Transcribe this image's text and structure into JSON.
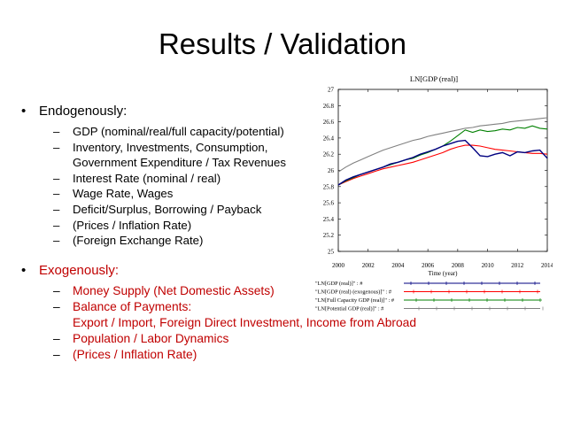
{
  "slide": {
    "title": "Results / Validation",
    "endogenous": {
      "label": "Endogenously:",
      "items": [
        "GDP (nominal/real/full capacity/potential)",
        "Inventory, Investments, Consumption,",
        "Government Expenditure / Tax Revenues",
        "Interest Rate (nominal / real)",
        "Wage Rate, Wages",
        "Deficit/Surplus, Borrowing / Payback",
        "(Prices / Inflation Rate)",
        "(Foreign Exchange Rate)"
      ]
    },
    "exogenous": {
      "label": "Exogenously:",
      "items": [
        "Money Supply (Net Domestic Assets)",
        "Balance of Payments:",
        "Export / Import, Foreign Direct Investment, Income from Abroad",
        "Population / Labor Dynamics",
        "(Prices / Inflation Rate)"
      ]
    }
  },
  "chart_data": {
    "type": "line",
    "title": "LN[GDP (real)]",
    "xlabel": "Time (year)",
    "ylabel": "",
    "xlim": [
      2000,
      2014
    ],
    "ylim": [
      25,
      27
    ],
    "xticks": [
      2000,
      2002,
      2004,
      2006,
      2008,
      2010,
      2012,
      2014
    ],
    "yticks": [
      25,
      25.2,
      25.4,
      25.6,
      25.8,
      26,
      26.2,
      26.4,
      26.6,
      26.8,
      27
    ],
    "grid": false,
    "legend_position": "bottom",
    "series": [
      {
        "name": "\"LN[GDP (real)]\" : #",
        "color": "#000080",
        "marker": "plus",
        "x": [
          2000,
          2000.5,
          2001,
          2001.5,
          2002,
          2002.5,
          2003,
          2003.5,
          2004,
          2004.5,
          2005,
          2005.5,
          2006,
          2006.5,
          2007,
          2007.5,
          2008,
          2008.5,
          2009,
          2009.5,
          2010,
          2010.5,
          2011,
          2011.5,
          2012,
          2012.5,
          2013,
          2013.5,
          2014
        ],
        "y": [
          25.82,
          25.88,
          25.92,
          25.95,
          25.98,
          26.01,
          26.04,
          26.08,
          26.1,
          26.13,
          26.16,
          26.2,
          26.23,
          26.26,
          26.3,
          26.33,
          26.36,
          26.37,
          26.28,
          26.18,
          26.17,
          26.2,
          26.22,
          26.18,
          26.23,
          26.22,
          26.24,
          26.25,
          26.15
        ]
      },
      {
        "name": "\"LN[GDP (real) (exogenous)]\" : #",
        "color": "#ff0000",
        "marker": "cross",
        "x": [
          2000,
          2000.5,
          2001,
          2001.5,
          2002,
          2002.5,
          2003,
          2003.5,
          2004,
          2004.5,
          2005,
          2005.5,
          2006,
          2006.5,
          2007,
          2007.5,
          2008,
          2008.5,
          2009,
          2009.5,
          2010,
          2010.5,
          2011,
          2011.5,
          2012,
          2012.5,
          2013,
          2013.5,
          2014
        ],
        "y": [
          25.82,
          25.86,
          25.9,
          25.93,
          25.96,
          25.99,
          26.02,
          26.04,
          26.06,
          26.08,
          26.1,
          26.13,
          26.16,
          26.19,
          26.22,
          26.26,
          26.29,
          26.31,
          26.31,
          26.3,
          26.28,
          26.26,
          26.25,
          26.24,
          26.23,
          26.22,
          26.21,
          26.21,
          26.2
        ]
      },
      {
        "name": "\"LN[Full Capacity GDP (real)]\" : #",
        "color": "#008000",
        "marker": "star",
        "x": [
          2000,
          2000.5,
          2001,
          2001.5,
          2002,
          2002.5,
          2003,
          2003.5,
          2004,
          2004.5,
          2005,
          2005.5,
          2006,
          2006.5,
          2007,
          2007.5,
          2008,
          2008.5,
          2009,
          2009.5,
          2010,
          2010.5,
          2011,
          2011.5,
          2012,
          2012.5,
          2013,
          2013.5,
          2014
        ],
        "y": [
          25.82,
          25.87,
          25.91,
          25.95,
          25.98,
          26.01,
          26.04,
          26.07,
          26.1,
          26.13,
          26.15,
          26.19,
          26.22,
          26.26,
          26.3,
          26.36,
          26.43,
          26.5,
          26.47,
          26.5,
          26.48,
          26.49,
          26.51,
          26.5,
          26.53,
          26.52,
          26.55,
          26.52,
          26.51
        ]
      },
      {
        "name": "\"LN[Potential GDP (real)]\" : #",
        "color": "#808080",
        "marker": "plus",
        "x": [
          2000,
          2000.5,
          2001,
          2001.5,
          2002,
          2002.5,
          2003,
          2003.5,
          2004,
          2004.5,
          2005,
          2005.5,
          2006,
          2006.5,
          2007,
          2007.5,
          2008,
          2008.5,
          2009,
          2009.5,
          2010,
          2010.5,
          2011,
          2011.5,
          2012,
          2012.5,
          2013,
          2013.5,
          2014
        ],
        "y": [
          25.98,
          26.04,
          26.09,
          26.13,
          26.17,
          26.21,
          26.25,
          26.28,
          26.31,
          26.34,
          26.37,
          26.39,
          26.42,
          26.44,
          26.46,
          26.48,
          26.5,
          26.52,
          26.53,
          26.55,
          26.56,
          26.57,
          26.58,
          26.6,
          26.61,
          26.62,
          26.63,
          26.64,
          26.65
        ]
      }
    ]
  }
}
